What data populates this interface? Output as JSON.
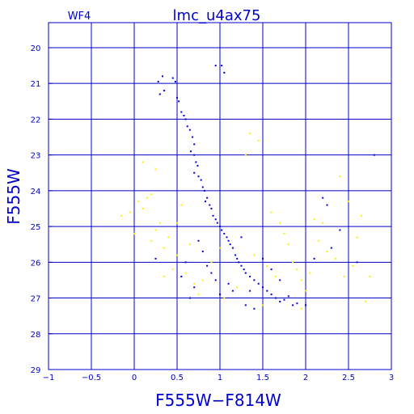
{
  "colors": {
    "axis": "#0000cc",
    "grid": "#0000cc",
    "text": "#0000cc",
    "series_primary": "#0000dd",
    "series_secondary": "#ffee00"
  },
  "chart_data": {
    "type": "scatter",
    "title": "lmc_u4ax75",
    "subtitle": "WF4",
    "xlabel": "F555W−F814W",
    "ylabel": "F555W",
    "xlim": [
      -1,
      3
    ],
    "ylim": [
      29,
      19.3
    ],
    "y_inverted": true,
    "grid": true,
    "xticks": [
      -1,
      -0.5,
      0,
      0.5,
      1,
      1.5,
      2,
      2.5,
      3
    ],
    "xtick_labels": [
      "−1",
      "−0.5",
      "0",
      "0.5",
      "1",
      "1.5",
      "2",
      "2.5",
      "3"
    ],
    "yticks": [
      20,
      21,
      22,
      23,
      24,
      25,
      26,
      27,
      28,
      29
    ],
    "ytick_labels": [
      "20",
      "21",
      "22",
      "23",
      "24",
      "25",
      "26",
      "27",
      "28",
      "29"
    ],
    "series": [
      {
        "color": "#0000dd",
        "points": [
          [
            0.28,
            20.95
          ],
          [
            0.3,
            21.3
          ],
          [
            0.33,
            20.8
          ],
          [
            0.45,
            20.85
          ],
          [
            0.48,
            20.95
          ],
          [
            0.35,
            21.2
          ],
          [
            0.95,
            20.5
          ],
          [
            1.02,
            20.5
          ],
          [
            1.05,
            20.7
          ],
          [
            0.5,
            21.4
          ],
          [
            0.52,
            21.5
          ],
          [
            0.55,
            21.8
          ],
          [
            0.58,
            21.9
          ],
          [
            0.6,
            22.0
          ],
          [
            0.62,
            22.2
          ],
          [
            0.65,
            22.3
          ],
          [
            0.68,
            22.5
          ],
          [
            0.7,
            22.7
          ],
          [
            0.66,
            22.9
          ],
          [
            0.7,
            23.0
          ],
          [
            0.72,
            23.2
          ],
          [
            0.74,
            23.3
          ],
          [
            0.7,
            23.5
          ],
          [
            0.75,
            23.6
          ],
          [
            0.78,
            23.7
          ],
          [
            0.8,
            23.9
          ],
          [
            0.82,
            24.0
          ],
          [
            0.85,
            24.2
          ],
          [
            0.83,
            24.3
          ],
          [
            0.88,
            24.4
          ],
          [
            0.9,
            24.5
          ],
          [
            0.92,
            24.7
          ],
          [
            0.95,
            24.8
          ],
          [
            0.97,
            24.9
          ],
          [
            1.0,
            25.0
          ],
          [
            1.02,
            25.1
          ],
          [
            1.05,
            25.2
          ],
          [
            1.08,
            25.3
          ],
          [
            1.1,
            25.4
          ],
          [
            1.12,
            25.5
          ],
          [
            1.15,
            25.6
          ],
          [
            1.18,
            25.8
          ],
          [
            1.2,
            25.9
          ],
          [
            1.22,
            26.0
          ],
          [
            1.25,
            26.1
          ],
          [
            1.28,
            26.2
          ],
          [
            1.3,
            26.3
          ],
          [
            1.35,
            26.4
          ],
          [
            1.4,
            26.5
          ],
          [
            1.45,
            26.6
          ],
          [
            1.5,
            26.7
          ],
          [
            1.55,
            26.8
          ],
          [
            1.6,
            26.9
          ],
          [
            1.65,
            27.0
          ],
          [
            1.7,
            27.1
          ],
          [
            1.75,
            27.05
          ],
          [
            1.8,
            26.95
          ],
          [
            1.1,
            26.6
          ],
          [
            1.15,
            26.8
          ],
          [
            0.95,
            26.5
          ],
          [
            1.0,
            26.9
          ],
          [
            0.9,
            26.3
          ],
          [
            0.85,
            26.1
          ],
          [
            0.6,
            26.0
          ],
          [
            0.55,
            26.4
          ],
          [
            0.7,
            26.7
          ],
          [
            0.65,
            27.0
          ],
          [
            1.3,
            27.2
          ],
          [
            1.4,
            27.3
          ],
          [
            1.85,
            27.2
          ],
          [
            1.9,
            27.15
          ],
          [
            0.25,
            25.9
          ],
          [
            2.2,
            24.2
          ],
          [
            2.25,
            24.4
          ],
          [
            2.4,
            25.1
          ],
          [
            2.3,
            25.6
          ],
          [
            2.1,
            25.9
          ],
          [
            2.8,
            23.0
          ],
          [
            0.75,
            25.4
          ],
          [
            0.8,
            25.7
          ],
          [
            1.25,
            25.3
          ],
          [
            1.5,
            25.9
          ],
          [
            1.6,
            26.2
          ],
          [
            1.35,
            26.8
          ],
          [
            1.7,
            26.5
          ],
          [
            2.0,
            27.2
          ],
          [
            2.6,
            26.0
          ]
        ]
      },
      {
        "color": "#ffee00",
        "points": [
          [
            -0.15,
            24.7
          ],
          [
            -0.05,
            24.6
          ],
          [
            0.05,
            24.3
          ],
          [
            0.1,
            24.5
          ],
          [
            0.15,
            24.2
          ],
          [
            0.2,
            24.1
          ],
          [
            0.25,
            25.1
          ],
          [
            0.3,
            24.9
          ],
          [
            0.35,
            25.6
          ],
          [
            0.4,
            25.3
          ],
          [
            0.45,
            26.2
          ],
          [
            0.5,
            25.8
          ],
          [
            0.6,
            26.3
          ],
          [
            0.65,
            25.5
          ],
          [
            0.7,
            26.6
          ],
          [
            0.35,
            26.4
          ],
          [
            0.2,
            25.4
          ],
          [
            0.0,
            25.2
          ],
          [
            0.1,
            23.2
          ],
          [
            0.25,
            23.4
          ],
          [
            0.5,
            24.9
          ],
          [
            0.55,
            24.4
          ],
          [
            0.75,
            26.9
          ],
          [
            0.8,
            26.5
          ],
          [
            1.35,
            22.4
          ],
          [
            1.45,
            22.6
          ],
          [
            1.3,
            23.0
          ],
          [
            1.6,
            24.6
          ],
          [
            1.7,
            24.9
          ],
          [
            1.75,
            25.2
          ],
          [
            1.8,
            25.5
          ],
          [
            1.85,
            26.0
          ],
          [
            1.9,
            26.2
          ],
          [
            1.95,
            26.5
          ],
          [
            2.0,
            26.8
          ],
          [
            2.05,
            26.3
          ],
          [
            2.15,
            25.4
          ],
          [
            2.25,
            25.7
          ],
          [
            2.35,
            25.9
          ],
          [
            2.45,
            26.4
          ],
          [
            2.55,
            26.1
          ],
          [
            2.6,
            25.3
          ],
          [
            2.65,
            24.7
          ],
          [
            2.5,
            24.3
          ],
          [
            2.4,
            23.6
          ],
          [
            2.2,
            24.9
          ],
          [
            2.1,
            24.8
          ],
          [
            1.55,
            26.1
          ],
          [
            1.65,
            26.4
          ],
          [
            1.4,
            25.8
          ],
          [
            1.2,
            26.7
          ],
          [
            1.05,
            27.0
          ],
          [
            0.9,
            26.0
          ],
          [
            1.0,
            25.6
          ],
          [
            2.7,
            27.1
          ],
          [
            2.75,
            26.4
          ],
          [
            1.95,
            27.3
          ],
          [
            1.5,
            27.2
          ]
        ]
      }
    ]
  }
}
